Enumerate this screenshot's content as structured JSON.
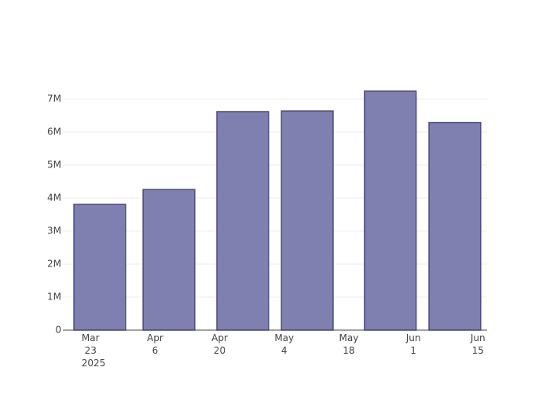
{
  "chart_data": {
    "type": "bar",
    "x": [
      "2025-03-25",
      "2025-04-09",
      "2025-04-25",
      "2025-05-09",
      "2025-05-27",
      "2025-06-10"
    ],
    "values": [
      3810000,
      4260000,
      6620000,
      6640000,
      7240000,
      6290000
    ],
    "color": "#7f7fb0",
    "edge_color": "#4a4a80",
    "xlim": [
      "2025-03-17",
      "2025-06-17"
    ],
    "xticks": [
      {
        "value": "2025-03-23",
        "label": "Mar 23\n2025"
      },
      {
        "value": "2025-04-06",
        "label": "Apr 6"
      },
      {
        "value": "2025-04-20",
        "label": "Apr 20"
      },
      {
        "value": "2025-05-04",
        "label": "May 4"
      },
      {
        "value": "2025-05-18",
        "label": "May 18"
      },
      {
        "value": "2025-06-01",
        "label": "Jun 1"
      },
      {
        "value": "2025-06-15",
        "label": "Jun 15"
      }
    ],
    "ylim": [
      0,
      7620000
    ],
    "yticks": [
      0,
      {
        "value": 1000000,
        "label": "1M"
      },
      {
        "value": 2000000,
        "label": "2M"
      },
      {
        "value": 3000000,
        "label": "3M"
      },
      {
        "value": 4000000,
        "label": "4M"
      },
      {
        "value": 5000000,
        "label": "5M"
      },
      {
        "value": 6000000,
        "label": "6M"
      },
      {
        "value": 7000000,
        "label": "7M"
      }
    ],
    "grid": true
  }
}
